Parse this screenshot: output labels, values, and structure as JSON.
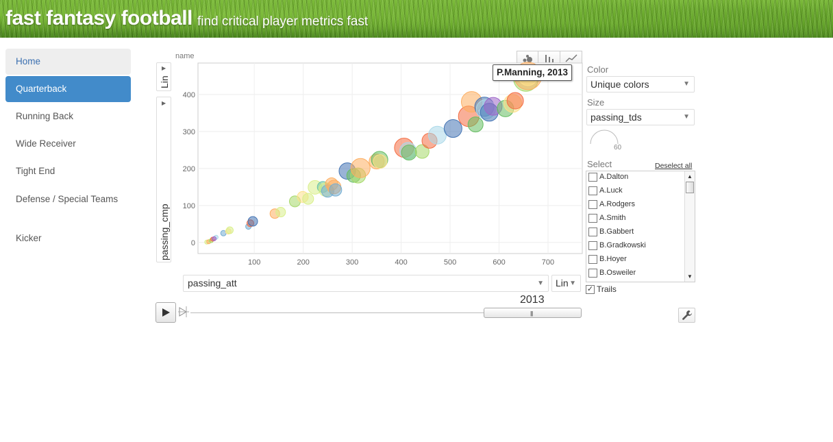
{
  "header": {
    "brand": "fast fantasy football",
    "tagline": "find critical player metrics fast"
  },
  "sidebar": {
    "items": [
      {
        "label": "Home",
        "state": "hover"
      },
      {
        "label": "Quarterback",
        "state": "active"
      },
      {
        "label": "Running Back",
        "state": "normal"
      },
      {
        "label": "Wide Receiver",
        "state": "normal"
      },
      {
        "label": "Tight End",
        "state": "normal"
      },
      {
        "label": "Defense / Special Teams",
        "state": "normal"
      },
      {
        "label": "Kicker",
        "state": "normal"
      }
    ]
  },
  "chart": {
    "name_label": "name",
    "y_scale": "Lin",
    "y_variable": "passing_cmp",
    "x_variable": "passing_att",
    "x_scale": "Lin",
    "tooltip": "P.Manning, 2013",
    "year": "2013",
    "view_icons": [
      "bubble-view-icon",
      "bar-view-icon",
      "line-view-icon"
    ]
  },
  "chart_data": {
    "type": "scatter",
    "title": "",
    "xlabel": "passing_att",
    "ylabel": "passing_cmp",
    "xlim": [
      -15,
      770
    ],
    "ylim": [
      -30,
      485
    ],
    "xticks": [
      100,
      200,
      300,
      400,
      500,
      600,
      700
    ],
    "yticks": [
      0,
      100,
      200,
      300,
      400
    ],
    "grid": true,
    "size_variable": "passing_tds",
    "color_mode": "Unique colors",
    "points": [
      {
        "x": 3,
        "y": 1,
        "r": 3,
        "color": "#d9ef8b"
      },
      {
        "x": 7,
        "y": 2,
        "r": 3,
        "color": "#fdae61"
      },
      {
        "x": 12,
        "y": 5,
        "r": 3,
        "color": "#a6d96a"
      },
      {
        "x": 15,
        "y": 9,
        "r": 3,
        "color": "#f46d43"
      },
      {
        "x": 22,
        "y": 14,
        "r": 3,
        "color": "#abd9e9"
      },
      {
        "x": 18,
        "y": 10,
        "r": 3,
        "color": "#9e67c9"
      },
      {
        "x": 37,
        "y": 25,
        "r": 4,
        "color": "#74add1"
      },
      {
        "x": 47,
        "y": 30,
        "r": 4,
        "color": "#fee08b"
      },
      {
        "x": 50,
        "y": 33,
        "r": 5,
        "color": "#d9ef8b"
      },
      {
        "x": 88,
        "y": 43,
        "r": 4,
        "color": "#74add1"
      },
      {
        "x": 92,
        "y": 52,
        "r": 5,
        "color": "#f46d43"
      },
      {
        "x": 97,
        "y": 57,
        "r": 7,
        "color": "#4575b4"
      },
      {
        "x": 142,
        "y": 78,
        "r": 7,
        "color": "#fdae61"
      },
      {
        "x": 154,
        "y": 82,
        "r": 7,
        "color": "#d9ef8b"
      },
      {
        "x": 183,
        "y": 111,
        "r": 8,
        "color": "#a6d96a"
      },
      {
        "x": 199,
        "y": 123,
        "r": 8,
        "color": "#fee08b"
      },
      {
        "x": 210,
        "y": 118,
        "r": 8,
        "color": "#d9ef8b"
      },
      {
        "x": 224,
        "y": 149,
        "r": 10,
        "color": "#d9ef8b"
      },
      {
        "x": 240,
        "y": 150,
        "r": 8,
        "color": "#66c2a5"
      },
      {
        "x": 246,
        "y": 143,
        "r": 10,
        "color": "#d9ef8b"
      },
      {
        "x": 250,
        "y": 139,
        "r": 9,
        "color": "#74add1"
      },
      {
        "x": 258,
        "y": 158,
        "r": 9,
        "color": "#fdae61"
      },
      {
        "x": 263,
        "y": 150,
        "r": 10,
        "color": "#fdae61"
      },
      {
        "x": 266,
        "y": 142,
        "r": 9,
        "color": "#74add1"
      },
      {
        "x": 290,
        "y": 193,
        "r": 12,
        "color": "#4575b4"
      },
      {
        "x": 303,
        "y": 181,
        "r": 10,
        "color": "#66bd63"
      },
      {
        "x": 312,
        "y": 181,
        "r": 11,
        "color": "#a6d96a"
      },
      {
        "x": 317,
        "y": 201,
        "r": 14,
        "color": "#fdae61"
      },
      {
        "x": 350,
        "y": 219,
        "r": 11,
        "color": "#fdae61"
      },
      {
        "x": 356,
        "y": 224,
        "r": 12,
        "color": "#66bd63"
      },
      {
        "x": 357,
        "y": 219,
        "r": 10,
        "color": "#fee08b"
      },
      {
        "x": 406,
        "y": 256,
        "r": 14,
        "color": "#f46d43"
      },
      {
        "x": 414,
        "y": 248,
        "r": 12,
        "color": "#abd9e9"
      },
      {
        "x": 416,
        "y": 243,
        "r": 11,
        "color": "#66bd63"
      },
      {
        "x": 443,
        "y": 246,
        "r": 10,
        "color": "#a6d96a"
      },
      {
        "x": 458,
        "y": 275,
        "r": 11,
        "color": "#f46d43"
      },
      {
        "x": 474,
        "y": 290,
        "r": 13,
        "color": "#abd9e9"
      },
      {
        "x": 506,
        "y": 308,
        "r": 13,
        "color": "#4575b4"
      },
      {
        "x": 538,
        "y": 341,
        "r": 15,
        "color": "#f46d43"
      },
      {
        "x": 544,
        "y": 380,
        "r": 15,
        "color": "#fdae61"
      },
      {
        "x": 552,
        "y": 319,
        "r": 11,
        "color": "#66bd63"
      },
      {
        "x": 570,
        "y": 367,
        "r": 14,
        "color": "#4575b4"
      },
      {
        "x": 573,
        "y": 360,
        "r": 14,
        "color": "#abd9e9"
      },
      {
        "x": 580,
        "y": 352,
        "r": 13,
        "color": "#4575b4"
      },
      {
        "x": 588,
        "y": 368,
        "r": 13,
        "color": "#9e67c9"
      },
      {
        "x": 613,
        "y": 362,
        "r": 12,
        "color": "#66bd63"
      },
      {
        "x": 628,
        "y": 376,
        "r": 13,
        "color": "#fee08b"
      },
      {
        "x": 633,
        "y": 383,
        "r": 12,
        "color": "#f46d43"
      },
      {
        "x": 655,
        "y": 442,
        "r": 18,
        "color": "#a6d96a"
      },
      {
        "x": 659,
        "y": 450,
        "r": 20,
        "color": "#fdae61"
      },
      {
        "x": 659,
        "y": 450,
        "r": 14,
        "color": "#fee08b"
      }
    ]
  },
  "panel": {
    "color_label": "Color",
    "color_value": "Unique colors",
    "size_label": "Size",
    "size_value": "passing_tds",
    "size_gauge_value": "60",
    "select_label": "Select",
    "deselect_all": "Deselect all",
    "players": [
      "A.Dalton",
      "A.Luck",
      "A.Rodgers",
      "A.Smith",
      "B.Gabbert",
      "B.Gradkowski",
      "B.Hoyer",
      "B.Osweiler"
    ],
    "trails_label": "Trails",
    "trails_checked": true
  }
}
